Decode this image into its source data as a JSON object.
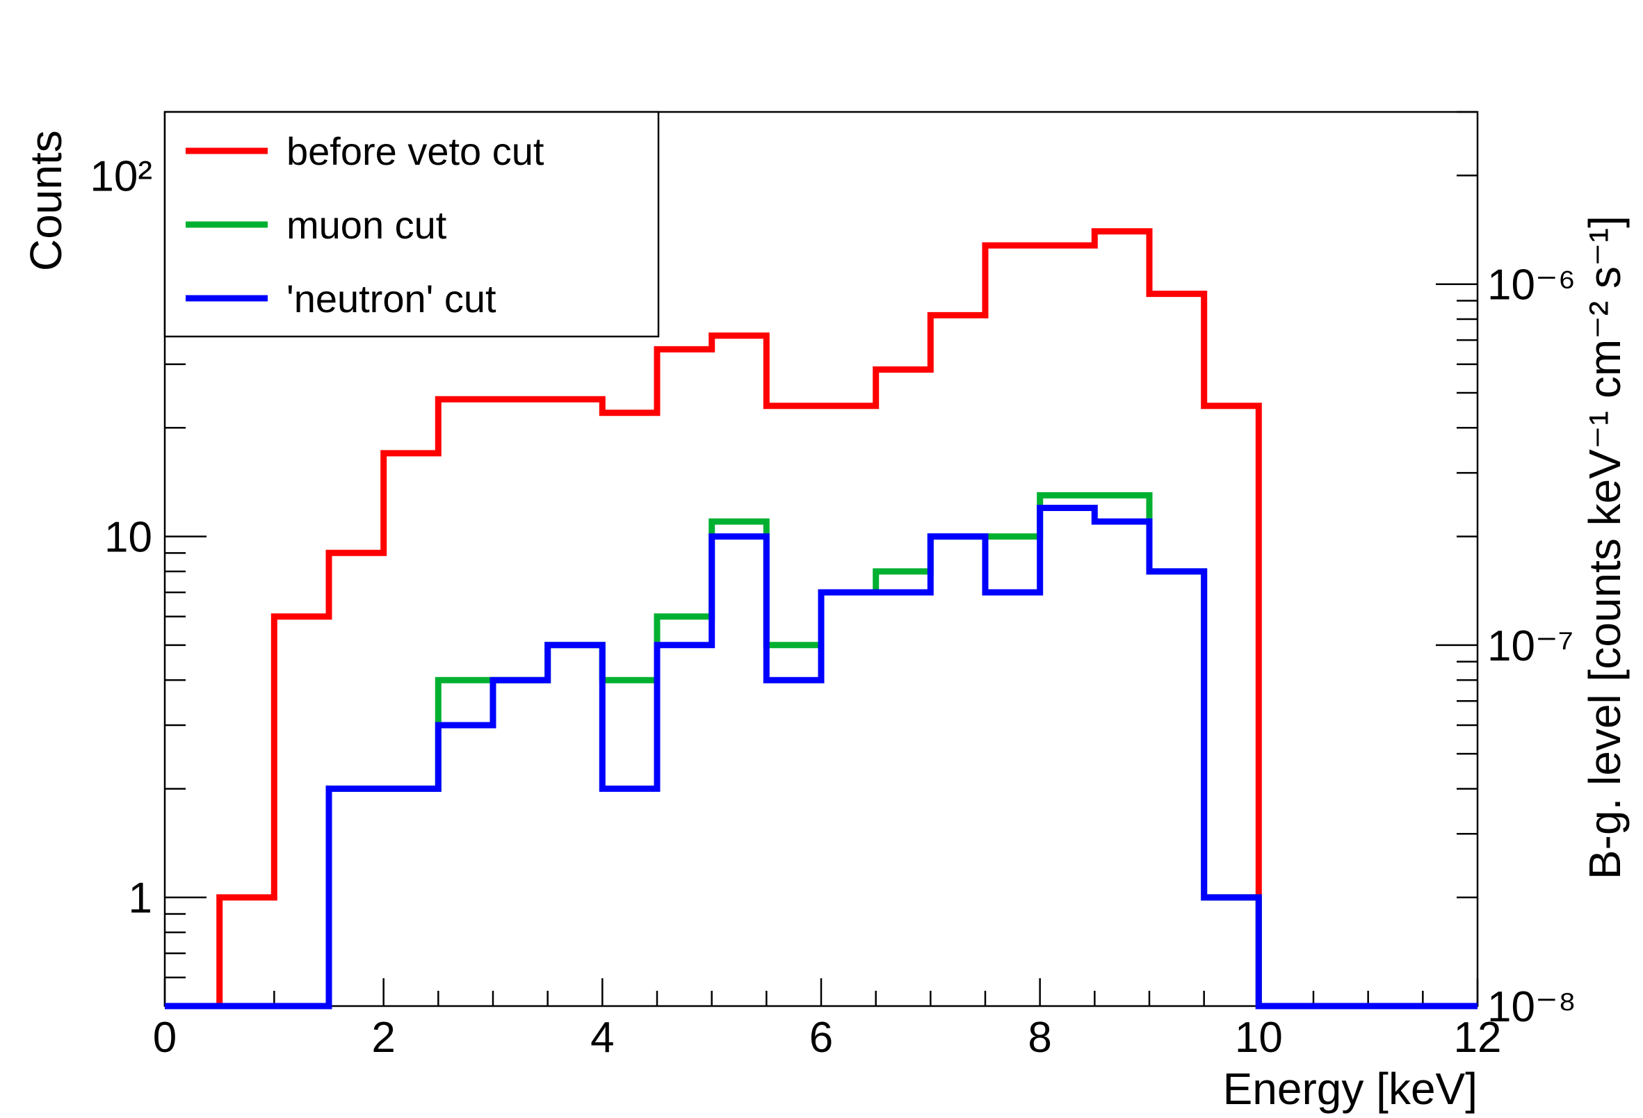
{
  "chart_data": {
    "type": "line",
    "style": "step-histogram",
    "xlabel": "Energy [keV]",
    "ylabel": "Counts",
    "ylabel_right": "B-g. level [counts keV⁻¹ cm⁻² s⁻¹]",
    "xlim": [
      0,
      12
    ],
    "ylim": [
      0.5,
      150
    ],
    "yscale": "log",
    "ylim_right": [
      1e-08,
      3e-06
    ],
    "yscale_right": "log",
    "grid": false,
    "legend_position": "top-left",
    "x_tick_labels": [
      "0",
      "2",
      "4",
      "6",
      "8",
      "10",
      "12"
    ],
    "y_tick_labels": [
      "1",
      "10",
      "10²"
    ],
    "y_right_tick_labels": [
      "10⁻⁸",
      "10⁻⁷",
      "10⁻⁶"
    ],
    "bin_edges": [
      0,
      0.5,
      1,
      1.5,
      2,
      2.5,
      3,
      3.5,
      4,
      4.5,
      5,
      5.5,
      6,
      6.5,
      7,
      7.5,
      8,
      8.5,
      9,
      9.5,
      10,
      10.5,
      11,
      11.5,
      12
    ],
    "series": [
      {
        "name": "before veto cut",
        "color": "#ff0000",
        "values": [
          0,
          1,
          6,
          9,
          17,
          24,
          24,
          24,
          22,
          33,
          36,
          23,
          23,
          29,
          41,
          64,
          64,
          70,
          47,
          23,
          0,
          0,
          0,
          0
        ]
      },
      {
        "name": "muon cut",
        "color": "#00b030",
        "values": [
          0,
          0,
          0,
          2,
          2,
          4,
          4,
          5,
          4,
          6,
          11,
          5,
          7,
          8,
          10,
          10,
          13,
          13,
          8,
          1,
          0,
          0,
          0,
          0
        ]
      },
      {
        "name": "'neutron' cut",
        "color": "#0000ff",
        "values": [
          0,
          0,
          0,
          2,
          2,
          3,
          4,
          5,
          2,
          5,
          10,
          4,
          7,
          7,
          10,
          7,
          12,
          11,
          8,
          1,
          0,
          0,
          0,
          0
        ]
      }
    ]
  }
}
